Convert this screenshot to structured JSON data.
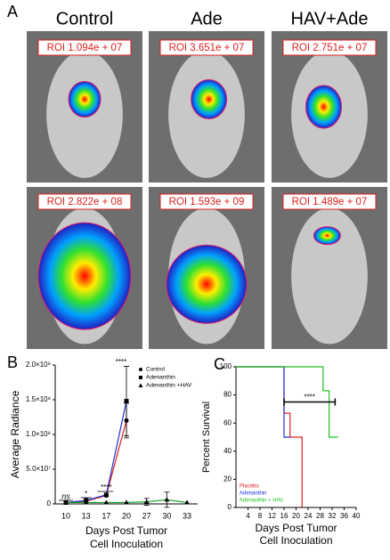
{
  "panel_a": {
    "label": "A",
    "columns": [
      "Control",
      "Ade",
      "HAV+Ade"
    ],
    "roi": [
      [
        "ROI 1.094e + 07",
        "ROI 3.651e + 07",
        "ROI 2.751e + 07"
      ],
      [
        "ROI 2.822e + 08",
        "ROI 1.593e + 09",
        "ROI 1.489e + 07"
      ]
    ]
  },
  "chart_data": [
    {
      "type": "line",
      "label": "B",
      "ylabel": "Average Radiance",
      "xlabel": [
        "Days Post Tumor",
        "Cell Inoculation"
      ],
      "categories": [
        "10",
        "13",
        "17",
        "20",
        "27",
        "30",
        "33"
      ],
      "ylim": [
        0,
        200000000
      ],
      "yticks": [
        0,
        {
          "value": 50000000,
          "label": "5.0×10⁷"
        },
        {
          "value": 100000000,
          "label": "1.0×10⁸"
        },
        {
          "value": 150000000,
          "label": "1.5×10⁸"
        },
        {
          "value": 200000000,
          "label": "2.0×10⁸"
        }
      ],
      "series": [
        {
          "name": "Control",
          "color": "#d62020",
          "marker": "circle",
          "values": [
            2000000,
            4000000,
            12000000,
            120000000,
            null,
            null,
            null
          ],
          "errors": [
            null,
            null,
            null,
            25000000,
            null,
            null,
            null
          ]
        },
        {
          "name": "Adenanthin",
          "color": "#2030d0",
          "marker": "square",
          "values": [
            2000000,
            5000000,
            13000000,
            148000000,
            null,
            null,
            null
          ],
          "errors": [
            null,
            null,
            null,
            50000000,
            null,
            null,
            null
          ]
        },
        {
          "name": "Adenanthin +HAV",
          "color": "#10a020",
          "marker": "triangle",
          "values": [
            2000000,
            2000000,
            2000000,
            2000000,
            3000000,
            6000000,
            2000000
          ],
          "errors": [
            null,
            null,
            null,
            null,
            5000000,
            11000000,
            null
          ]
        }
      ],
      "annotations": [
        "ns",
        "*",
        "****",
        "****"
      ]
    },
    {
      "type": "step",
      "label": "C",
      "ylabel": "Percent Survival",
      "xlabel": [
        "Days Post Tumor",
        "Cell Inoculation"
      ],
      "xlim": [
        0,
        40
      ],
      "xticks": [
        4,
        8,
        12,
        16,
        20,
        24,
        28,
        32,
        36,
        40
      ],
      "ylim": [
        0,
        100
      ],
      "yticks": [
        0,
        20,
        40,
        60,
        80,
        100
      ],
      "series": [
        {
          "name": "Placebo",
          "color": "#e02020",
          "x": [
            0,
            16,
            18,
            22
          ],
          "values": [
            100,
            67,
            50,
            0
          ]
        },
        {
          "name": "Adenanthin",
          "color": "#2030e0",
          "x": [
            0,
            16,
            18
          ],
          "values": [
            100,
            50,
            50
          ]
        },
        {
          "name": "Adenanthin + HAV",
          "color": "#20c020",
          "x": [
            0,
            29,
            31,
            34
          ],
          "values": [
            100,
            83,
            50,
            50
          ]
        }
      ],
      "annotations": [
        "****"
      ]
    }
  ]
}
